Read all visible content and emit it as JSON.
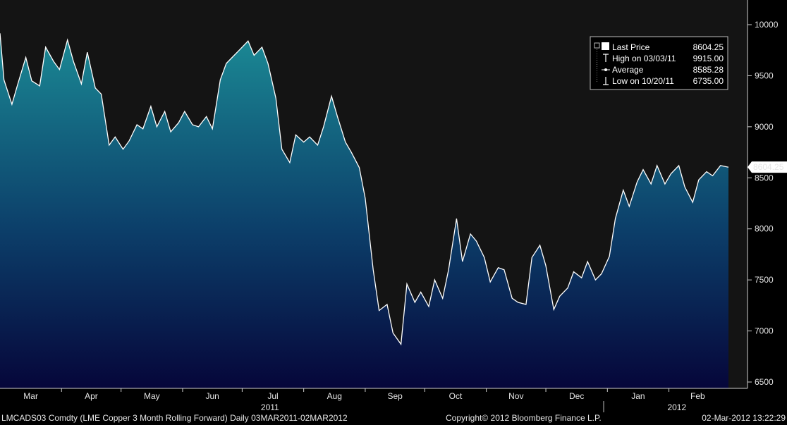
{
  "chart_data": {
    "type": "area",
    "title": "",
    "xlabel": "",
    "ylabel": "",
    "ylim": [
      6500,
      10200
    ],
    "y_ticks": [
      6500,
      7000,
      7500,
      8000,
      8500,
      9000,
      9500,
      10000
    ],
    "y_tick_labels": [
      "6500",
      "7000",
      "7500",
      "8000",
      "8500",
      "9000",
      "9500",
      "10000"
    ],
    "months": [
      "Mar",
      "Apr",
      "May",
      "Jun",
      "Jul",
      "Aug",
      "Sep",
      "Oct",
      "Nov",
      "Dec",
      "Jan",
      "Feb"
    ],
    "years": [
      "2011",
      "2012"
    ],
    "last_price_label": "8604.25",
    "colors": {
      "background": "#141414",
      "line": "#ffffff",
      "fill_top": "#1b8a95",
      "fill_bottom": "#06063a"
    },
    "grid": false,
    "legend_position": "top-right",
    "series": [
      {
        "x": [
          "2011-03-01",
          "2011-03-03",
          "2011-03-07",
          "2011-03-10",
          "2011-03-14",
          "2011-03-17",
          "2011-03-21",
          "2011-03-24",
          "2011-03-28",
          "2011-03-31",
          "2011-04-04",
          "2011-04-07",
          "2011-04-11",
          "2011-04-14",
          "2011-04-18",
          "2011-04-21",
          "2011-04-25",
          "2011-04-28",
          "2011-05-02",
          "2011-05-05",
          "2011-05-09",
          "2011-05-12",
          "2011-05-16",
          "2011-05-19",
          "2011-05-23",
          "2011-05-26",
          "2011-05-30",
          "2011-06-02",
          "2011-06-06",
          "2011-06-09",
          "2011-06-13",
          "2011-06-16",
          "2011-06-20",
          "2011-06-23",
          "2011-06-27",
          "2011-06-30",
          "2011-07-04",
          "2011-07-07",
          "2011-07-11",
          "2011-07-14",
          "2011-07-18",
          "2011-07-21",
          "2011-07-25",
          "2011-07-28",
          "2011-08-01",
          "2011-08-04",
          "2011-08-08",
          "2011-08-11",
          "2011-08-15",
          "2011-08-18",
          "2011-08-22",
          "2011-08-25",
          "2011-08-29",
          "2011-09-01",
          "2011-09-05",
          "2011-09-08",
          "2011-09-12",
          "2011-09-15",
          "2011-09-19",
          "2011-09-22",
          "2011-09-26",
          "2011-09-29",
          "2011-10-03",
          "2011-10-06",
          "2011-10-10",
          "2011-10-13",
          "2011-10-17",
          "2011-10-20",
          "2011-10-24",
          "2011-10-27",
          "2011-10-31",
          "2011-11-03",
          "2011-11-07",
          "2011-11-10",
          "2011-11-14",
          "2011-11-17",
          "2011-11-21",
          "2011-11-24",
          "2011-11-28",
          "2011-12-01",
          "2011-12-05",
          "2011-12-08",
          "2011-12-12",
          "2011-12-15",
          "2011-12-19",
          "2011-12-22",
          "2011-12-26",
          "2011-12-29",
          "2012-01-02",
          "2012-01-05",
          "2012-01-09",
          "2012-01-12",
          "2012-01-16",
          "2012-01-19",
          "2012-01-23",
          "2012-01-26",
          "2012-01-30",
          "2012-02-02",
          "2012-02-06",
          "2012-02-09",
          "2012-02-13",
          "2012-02-16",
          "2012-02-20",
          "2012-02-23",
          "2012-02-27",
          "2012-03-02"
        ],
        "values": [
          9915,
          9460,
          9220,
          9420,
          9680,
          9450,
          9400,
          9780,
          9640,
          9560,
          9850,
          9640,
          9420,
          9730,
          9380,
          9320,
          8820,
          8900,
          8780,
          8860,
          9020,
          8980,
          9200,
          9000,
          9150,
          8950,
          9040,
          9150,
          9020,
          9000,
          9100,
          8980,
          9460,
          9620,
          9700,
          9760,
          9840,
          9700,
          9780,
          9620,
          9280,
          8780,
          8650,
          8920,
          8850,
          8900,
          8820,
          9000,
          9300,
          9100,
          8850,
          8750,
          8600,
          8300,
          7600,
          7200,
          7260,
          6980,
          6870,
          7460,
          7280,
          7380,
          7240,
          7500,
          7320,
          7600,
          8100,
          7680,
          7950,
          7880,
          7720,
          7480,
          7620,
          7600,
          7320,
          7280,
          7260,
          7720,
          7840,
          7640,
          7210,
          7340,
          7420,
          7580,
          7520,
          7680,
          7500,
          7560,
          7730,
          8100,
          8380,
          8220,
          8460,
          8580,
          8440,
          8620,
          8440,
          8540,
          8620,
          8410,
          8260,
          8480,
          8560,
          8520,
          8620,
          8604
        ]
      }
    ],
    "legend": [
      {
        "label": "Last Price",
        "value": "8604.25"
      },
      {
        "label": "High on 03/03/11",
        "value": "9915.00"
      },
      {
        "label": "Average",
        "value": "8585.28"
      },
      {
        "label": "Low on 10/20/11",
        "value": "6735.00"
      }
    ]
  },
  "footer": {
    "ticker": "LMCADS03 Comdty (LME Copper 3 Month Rolling Forward)  Daily 03MAR2011-02MAR2012",
    "copyright": "Copyright© 2012 Bloomberg Finance L.P.",
    "timestamp": "02-Mar-2012 13:22:29"
  }
}
